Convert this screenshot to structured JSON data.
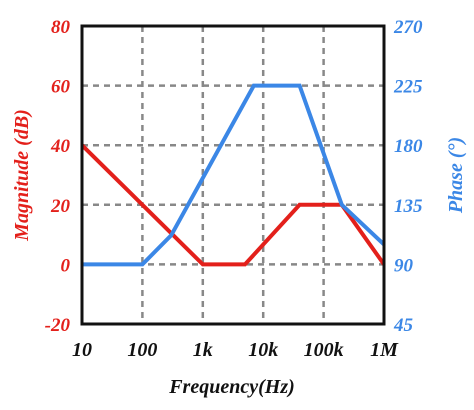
{
  "colors": {
    "magnitude": "#e3201b",
    "phase": "#3b87e6",
    "grid": "#888888",
    "frame": "#111111"
  },
  "chart_data": {
    "type": "line",
    "xlabel": "Frequency(Hz)",
    "ylabel_left": "Magnitude (dB)",
    "ylabel_right": "Phase (°)",
    "x_scale": "log",
    "xlim": [
      10,
      1000000
    ],
    "ylim_left": [
      -20,
      80
    ],
    "ylim_right": [
      45,
      270
    ],
    "grid": true,
    "x_ticks": [
      {
        "value": 10,
        "label": "10"
      },
      {
        "value": 100,
        "label": "100"
      },
      {
        "value": 1000,
        "label": "1k"
      },
      {
        "value": 10000,
        "label": "10k"
      },
      {
        "value": 100000,
        "label": "100k"
      },
      {
        "value": 1000000,
        "label": "1M"
      }
    ],
    "y_ticks_left": [
      {
        "value": 80,
        "label": "80"
      },
      {
        "value": 60,
        "label": "60"
      },
      {
        "value": 40,
        "label": "40"
      },
      {
        "value": 20,
        "label": "20"
      },
      {
        "value": 0,
        "label": "0"
      },
      {
        "value": -20,
        "label": "-20"
      }
    ],
    "y_ticks_right": [
      {
        "value": 270,
        "label": "270"
      },
      {
        "value": 225,
        "label": "225"
      },
      {
        "value": 180,
        "label": "180"
      },
      {
        "value": 135,
        "label": "135"
      },
      {
        "value": 90,
        "label": "90"
      },
      {
        "value": 45,
        "label": "45"
      }
    ],
    "series": [
      {
        "axis": "left",
        "color": "#e3201b",
        "x": [
          10,
          100,
          1000,
          5000,
          40000,
          200000,
          1000000
        ],
        "y": [
          40,
          20,
          0,
          0,
          20,
          20,
          0
        ]
      },
      {
        "axis": "right",
        "color": "#3b87e6",
        "x": [
          10,
          100,
          300,
          7000,
          40000,
          200000,
          1000000
        ],
        "y": [
          90,
          90,
          112,
          225,
          225,
          135,
          105
        ]
      }
    ]
  }
}
